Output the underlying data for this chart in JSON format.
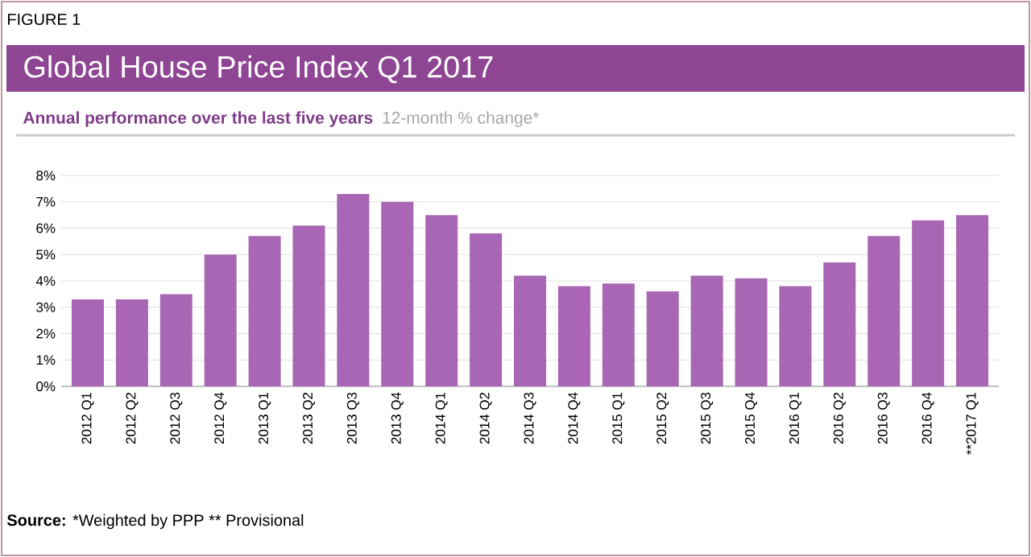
{
  "chart_data": {
    "type": "bar",
    "title": "Global House Price Index Q1 2017",
    "subtitle": "Annual performance over the last five years",
    "ylabel": "12-month % change*",
    "categories": [
      "2012 Q1",
      "2012 Q2",
      "2012 Q3",
      "2012 Q4",
      "2013 Q1",
      "2013 Q2",
      "2013 Q3",
      "2013 Q4",
      "2014 Q1",
      "2014 Q2",
      "2014 Q3",
      "2014 Q4",
      "2015 Q1",
      "2015 Q2",
      "2015 Q3",
      "2015 Q4",
      "2016 Q1",
      "2016 Q2",
      "2016 Q3",
      "2016 Q4",
      "**2017 Q1"
    ],
    "values": [
      3.3,
      3.3,
      3.5,
      5.0,
      5.7,
      6.1,
      7.3,
      7.0,
      6.5,
      5.8,
      4.2,
      3.8,
      3.9,
      3.6,
      4.2,
      4.1,
      3.8,
      4.7,
      5.7,
      6.3,
      6.5
    ],
    "color": "#a866b4",
    "ylim": [
      0,
      8
    ],
    "yticks": [
      {
        "value": 0,
        "label": "0%"
      },
      {
        "value": 1,
        "label": "1%"
      },
      {
        "value": 2,
        "label": "2%"
      },
      {
        "value": 3,
        "label": "3%"
      },
      {
        "value": 4,
        "label": "4%"
      },
      {
        "value": 5,
        "label": "5%"
      },
      {
        "value": 6,
        "label": "6%"
      },
      {
        "value": 7,
        "label": "7%"
      },
      {
        "value": 8,
        "label": "8%"
      }
    ],
    "grid": "y",
    "annotations": [
      "FIGURE 1",
      "**Source:** *Weighted by PPP ** Provisional"
    ]
  }
}
